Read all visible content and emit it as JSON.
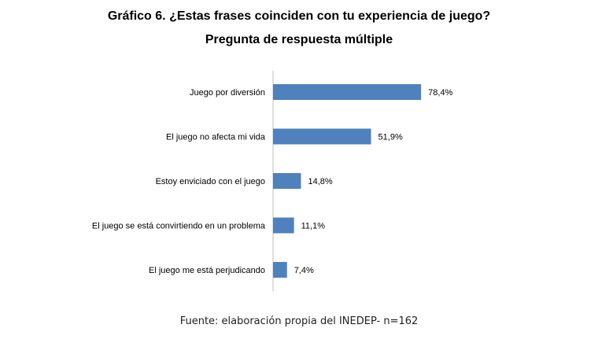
{
  "chart_data": {
    "type": "bar",
    "orientation": "horizontal",
    "title_line1": "Gráfico 6. ¿Estas frases coinciden con tu experiencia de juego?",
    "title_line2": "Pregunta de respuesta múltiple",
    "categories": [
      "Juego por diversión",
      "El juego no afecta mi vida",
      "Estoy enviciado con el juego",
      "El juego se está convirtiendo en un problema",
      "El juego me está perjudicando"
    ],
    "values": [
      78.4,
      51.9,
      14.8,
      11.1,
      7.4
    ],
    "value_labels": [
      "78,4%",
      "51,9%",
      "14,8%",
      "11,1%",
      "7,4%"
    ],
    "unit": "%",
    "xlim": [
      0,
      100
    ],
    "grid": false,
    "bar_color": "#4f81bd",
    "source": "Fuente: elaboración propia del INEDEP- n=162"
  }
}
